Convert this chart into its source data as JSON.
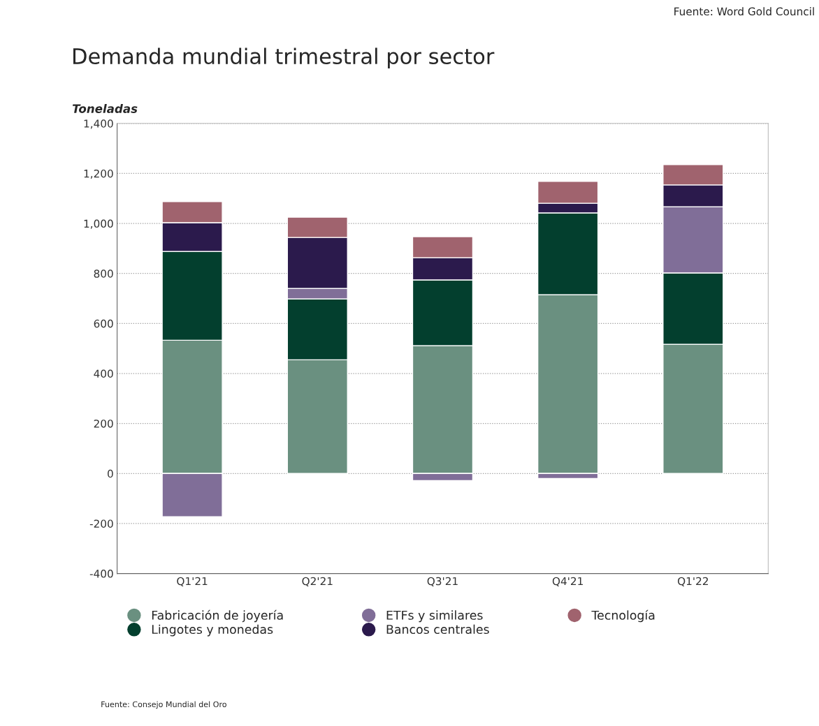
{
  "chart_data": {
    "type": "bar",
    "stacked": true,
    "title": "Demanda mundial trimestral por sector",
    "ylabel": "Toneladas",
    "categories": [
      "Q1'21",
      "Q2'21",
      "Q3'21",
      "Q4'21",
      "Q1'22"
    ],
    "series": [
      {
        "name": "Fabricación de joyería",
        "color": "#6a9080",
        "values": [
          533,
          455,
          511,
          715,
          517
        ]
      },
      {
        "name": "Lingotes y monedas",
        "color": "#033f2e",
        "values": [
          355,
          243,
          263,
          327,
          285
        ]
      },
      {
        "name": "ETFs y similares",
        "color": "#806e98",
        "values": [
          -173,
          42,
          -28,
          -20,
          265
        ]
      },
      {
        "name": "Bancos centrales",
        "color": "#2b1a4c",
        "values": [
          115,
          204,
          89,
          39,
          87
        ]
      },
      {
        "name": "Tecnología",
        "color": "#a0636e",
        "values": [
          84,
          81,
          84,
          87,
          81
        ]
      }
    ],
    "ylim": [
      -400,
      1400
    ],
    "yticks": [
      {
        "value": -400,
        "label": "-400"
      },
      {
        "value": -200,
        "label": "-200"
      },
      0,
      200,
      400,
      600,
      800,
      {
        "value": 1000,
        "label": "1,000"
      },
      {
        "value": 1200,
        "label": "1,200"
      },
      {
        "value": 1400,
        "label": "1,400"
      }
    ],
    "grid": "y",
    "legend": "bottom",
    "annotations": [
      "Fuente: Word Gold Council",
      "Fuente: Consejo Mundial del Oro"
    ]
  }
}
